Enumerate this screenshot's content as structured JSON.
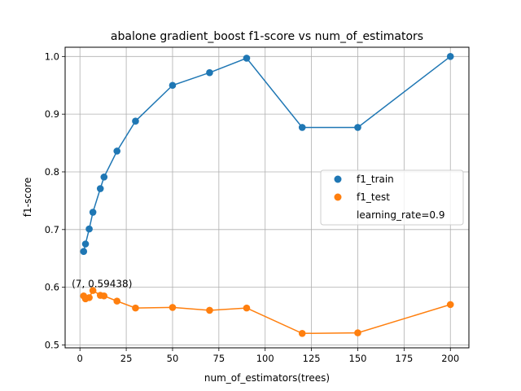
{
  "chart_data": {
    "type": "line",
    "title": "abalone gradient_boost f1-score vs num_of_estimators",
    "xlabel": "num_of_estimators(trees)",
    "ylabel": "f1-score",
    "xlim": [
      -8,
      210
    ],
    "ylim": [
      0.495,
      1.016
    ],
    "xticks": [
      0,
      25,
      50,
      75,
      100,
      125,
      150,
      175,
      200
    ],
    "yticks": [
      0.5,
      0.6,
      0.7,
      0.8,
      0.9,
      1.0
    ],
    "grid": true,
    "x": [
      2,
      3,
      5,
      7,
      11,
      13,
      20,
      30,
      50,
      70,
      90,
      120,
      150,
      200
    ],
    "series": [
      {
        "name": "f1_train",
        "color": "#1f77b4",
        "values": [
          0.662,
          0.675,
          0.701,
          0.73,
          0.771,
          0.791,
          0.836,
          0.888,
          0.95,
          0.972,
          0.997,
          0.877,
          0.877,
          1.0
        ]
      },
      {
        "name": "f1_test",
        "color": "#ff7f0e",
        "values": [
          0.585,
          0.58,
          0.582,
          0.59438,
          0.586,
          0.585,
          0.576,
          0.564,
          0.565,
          0.56,
          0.564,
          0.52,
          0.521,
          0.57
        ]
      }
    ],
    "legend": {
      "placement": "center-right",
      "entries": [
        "f1_train",
        "f1_test",
        "learning_rate=0.9"
      ]
    },
    "annotation": {
      "text": "(7, 0.59438)",
      "x": 7,
      "y": 0.59438
    }
  }
}
